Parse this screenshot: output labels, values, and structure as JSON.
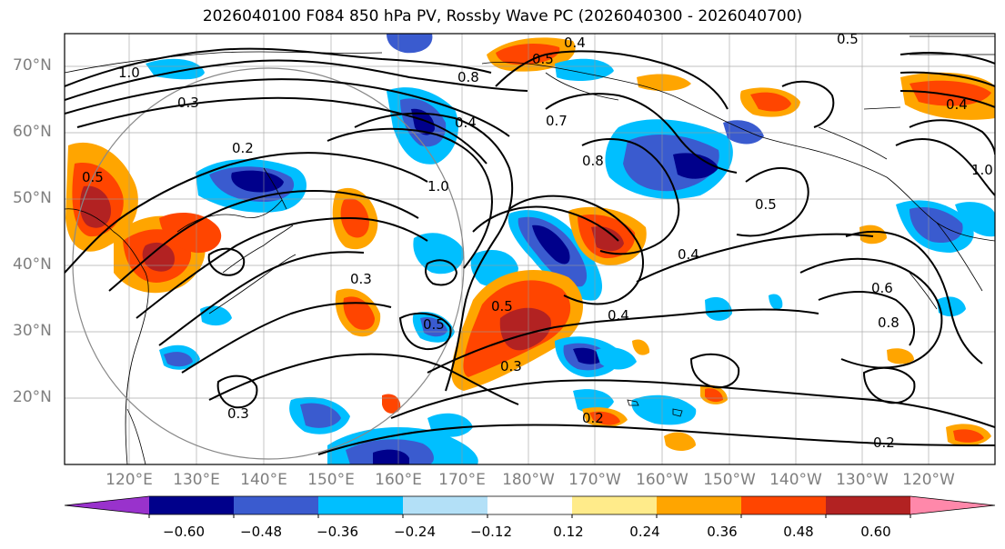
{
  "title": "2026040100 F084 850 hPa PV, Rossby Wave PC (2026040300 - 2026040700)",
  "latitude_labels": [
    "70°N",
    "60°N",
    "50°N",
    "40°N",
    "30°N",
    "20°N"
  ],
  "longitude_labels": [
    "120°E",
    "130°E",
    "140°E",
    "150°E",
    "160°E",
    "170°E",
    "180°W",
    "170°W",
    "160°W",
    "150°W",
    "140°W",
    "130°W",
    "120°W"
  ],
  "contour_labels": [
    "1.0",
    "0.3",
    "0.8",
    "0.4",
    "0.5",
    "0.5",
    "0.7",
    "0.8",
    "1.0",
    "0.2",
    "0.3",
    "0.5",
    "0.4",
    "0.3",
    "0.5",
    "0.5",
    "0.3",
    "0.4",
    "0.2",
    "0.2",
    "0.4",
    "0.5",
    "0.8",
    "0.6",
    "1.0",
    "0.4"
  ],
  "colorbar": {
    "tick_labels": [
      "−0.60",
      "−0.48",
      "−0.36",
      "−0.24",
      "−0.12",
      "0.12",
      "0.24",
      "0.36",
      "0.48",
      "0.60"
    ],
    "colors": [
      "#9932cc",
      "#00008b",
      "#3a5bcf",
      "#00bfff",
      "#b3e0f7",
      "#ffffff",
      "#ffeb8a",
      "#ffa500",
      "#ff4500",
      "#b22222",
      "#ff88aa"
    ]
  }
}
